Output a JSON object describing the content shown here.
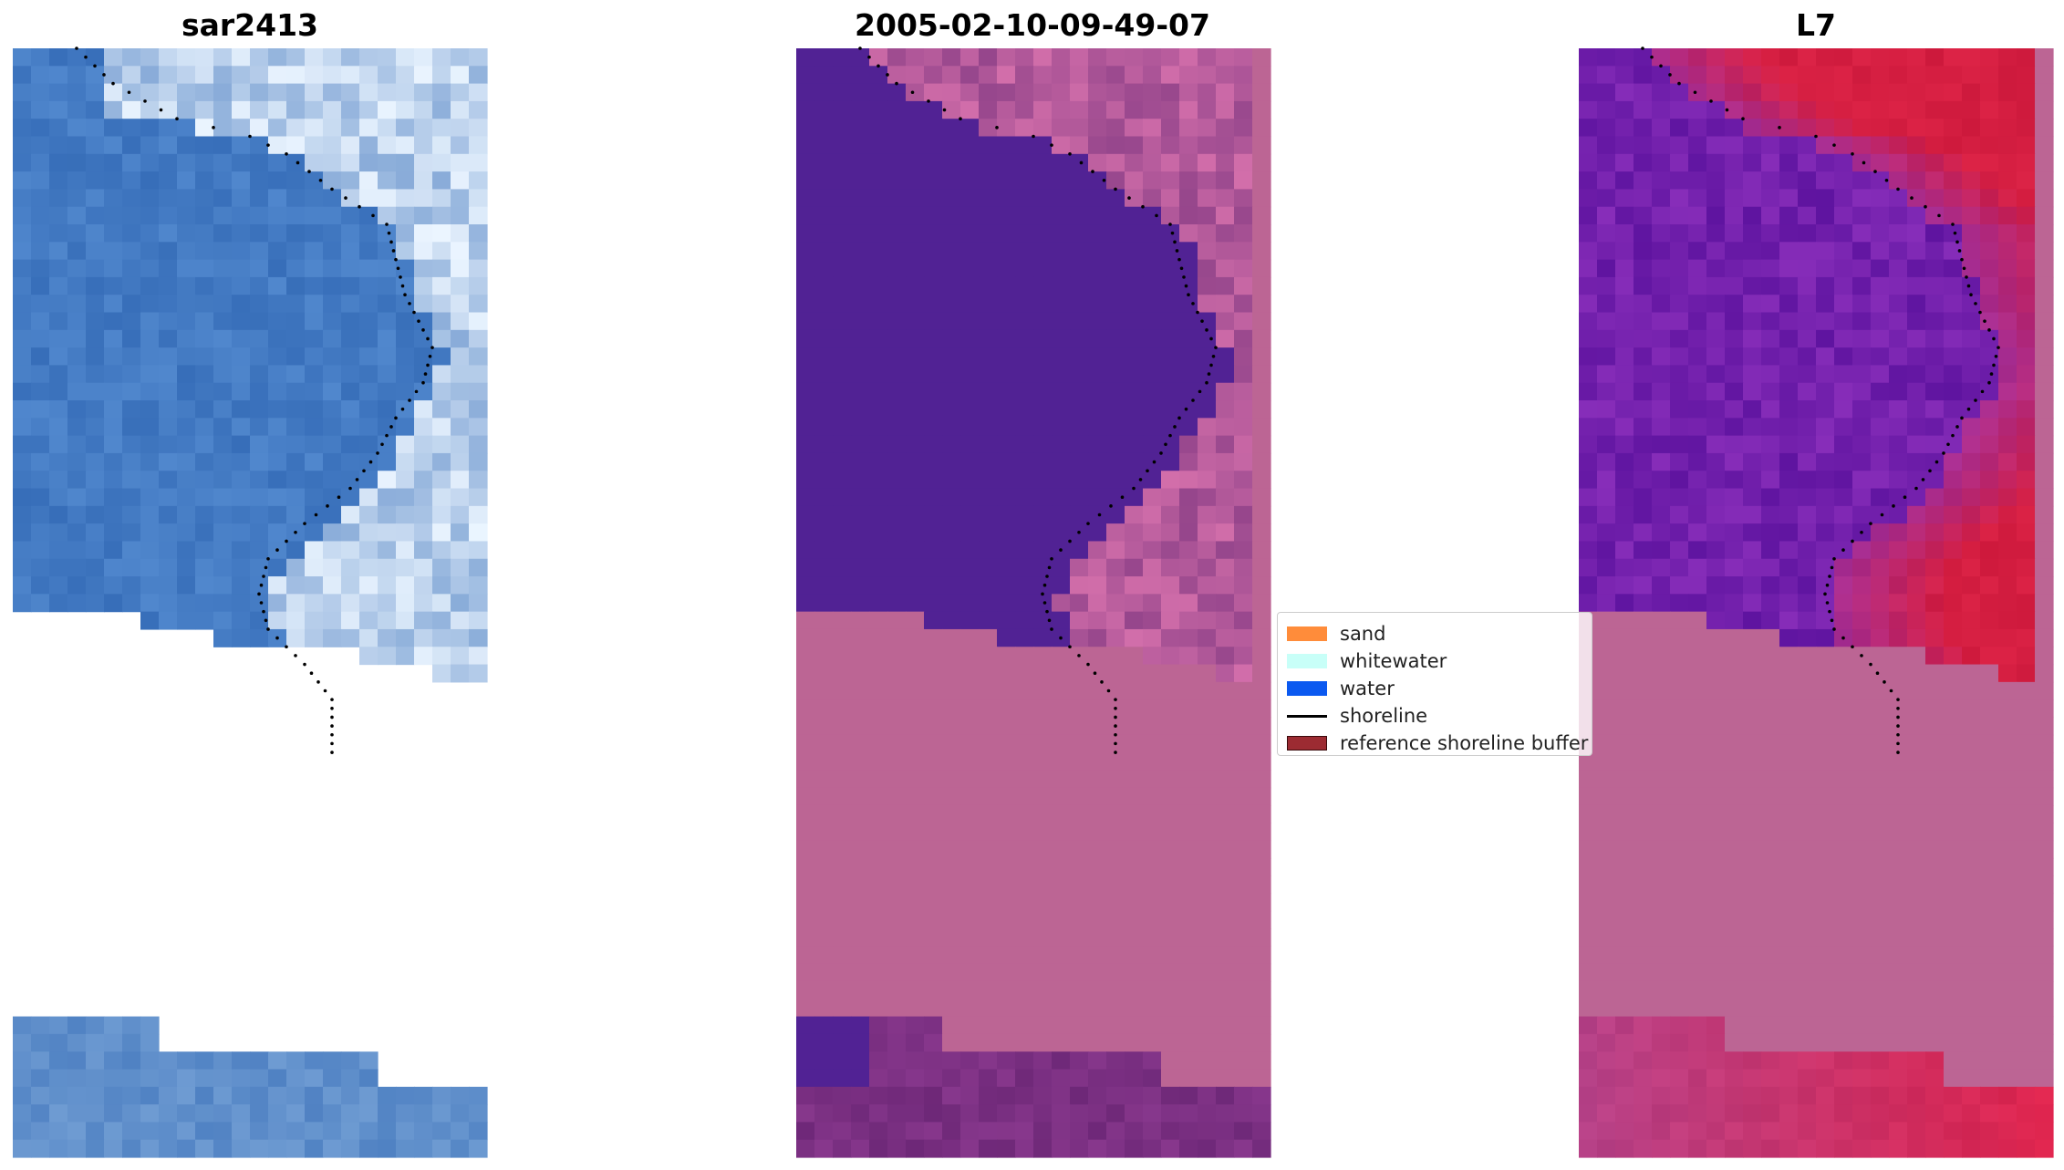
{
  "panels": [
    {
      "title": "sar2413",
      "kind": "rgb"
    },
    {
      "title": "2005-02-10-09-49-07",
      "kind": "classified"
    },
    {
      "title": "L7",
      "kind": "index"
    }
  ],
  "legend": {
    "items": [
      {
        "label": "sand",
        "type": "patch",
        "color": "#ff8c3a"
      },
      {
        "label": "whitewater",
        "type": "patch",
        "color": "#c8fff8"
      },
      {
        "label": "water",
        "type": "patch",
        "color": "#0b59f0"
      },
      {
        "label": "shoreline",
        "type": "line",
        "color": "#000000"
      },
      {
        "label": "reference shoreline buffer",
        "type": "patch",
        "color": "#9c2b32"
      }
    ]
  },
  "colors": {
    "no_data": "#bc6594",
    "water_class": "#512294",
    "shoreline_dots": "#000000"
  }
}
